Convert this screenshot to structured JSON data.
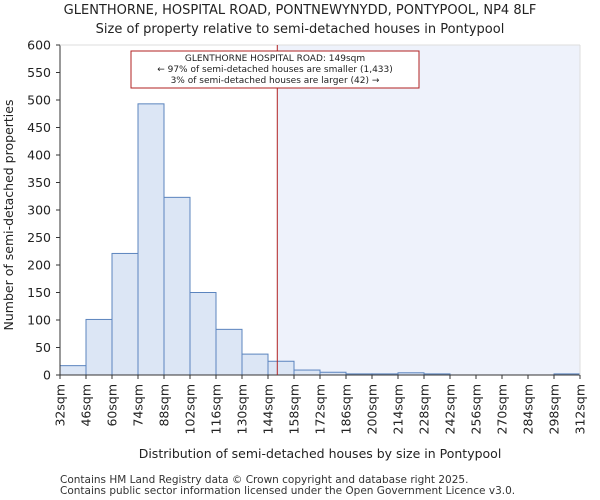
{
  "chart_data": {
    "type": "bar",
    "title": "GLENTHORNE, HOSPITAL ROAD, PONTNEWYNYDD, PONTYPOOL, NP4 8LF",
    "subtitle": "Size of property relative to semi-detached houses in Pontypool",
    "xlabel": "Distribution of semi-detached houses by size in Pontypool",
    "ylabel": "Number of semi-detached properties",
    "ylim": [
      0,
      600
    ],
    "yticks": [
      0,
      50,
      100,
      150,
      200,
      250,
      300,
      350,
      400,
      450,
      500,
      550,
      600
    ],
    "bin_edges": [
      32,
      46,
      60,
      74,
      88,
      102,
      116,
      130,
      144,
      158,
      172,
      186,
      200,
      214,
      228,
      242,
      256,
      270,
      284,
      298,
      312
    ],
    "tick_labels": [
      "32sqm",
      "46sqm",
      "60sqm",
      "74sqm",
      "88sqm",
      "102sqm",
      "116sqm",
      "130sqm",
      "144sqm",
      "158sqm",
      "172sqm",
      "186sqm",
      "200sqm",
      "214sqm",
      "228sqm",
      "242sqm",
      "256sqm",
      "270sqm",
      "284sqm",
      "298sqm",
      "312sqm"
    ],
    "values": [
      17,
      101,
      221,
      493,
      323,
      150,
      83,
      38,
      25,
      9,
      5,
      2,
      2,
      4,
      2,
      0,
      0,
      0,
      0,
      2
    ],
    "marker_value": 149,
    "bar_color": "#dce6f5",
    "bar_edge_color": "#5b84be",
    "marker_color": "#b22222",
    "shade_color": "#eef2fb",
    "annotation": {
      "line1": "GLENTHORNE HOSPITAL ROAD: 149sqm",
      "line2": "← 97% of semi-detached houses are smaller (1,433)",
      "line3": "3% of semi-detached houses are larger (42) →"
    }
  },
  "footer": {
    "line1": "Contains HM Land Registry data © Crown copyright and database right 2025.",
    "line2": "Contains public sector information licensed under the Open Government Licence v3.0."
  }
}
